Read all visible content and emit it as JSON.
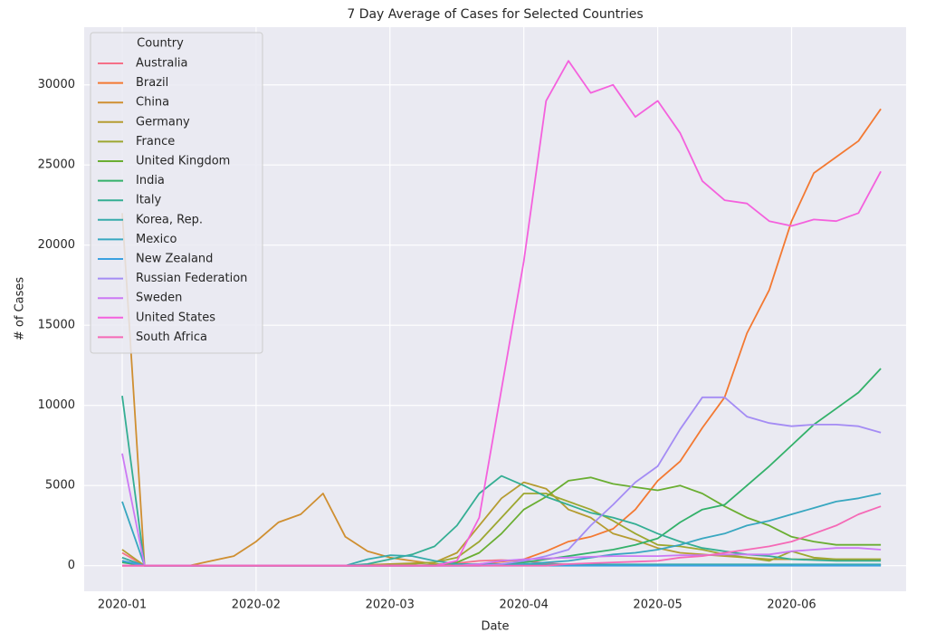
{
  "chart_data": {
    "type": "line",
    "title": "7 Day Average of Cases for Selected Countries",
    "xlabel": "Date",
    "ylabel": "# of Cases",
    "legend_title": "Country",
    "legend": "upper left",
    "grid": true,
    "categories": [
      "2020-01",
      null,
      null,
      null,
      null,
      null,
      "2020-02",
      null,
      null,
      null,
      null,
      null,
      "2020-03",
      null,
      null,
      null,
      null,
      null,
      "2020-04",
      null,
      null,
      null,
      null,
      null,
      "2020-05",
      null,
      null,
      null,
      null,
      null,
      "2020-06",
      null,
      null,
      null,
      null
    ],
    "ylim": [
      -1600,
      33600
    ],
    "yticks": [
      0,
      5000,
      10000,
      15000,
      20000,
      25000,
      30000
    ],
    "series": [
      {
        "name": "Australia",
        "color": "#f67088",
        "values": [
          800,
          0,
          0,
          0,
          0,
          0,
          0,
          0,
          0,
          0,
          0,
          0,
          0,
          0,
          50,
          150,
          300,
          350,
          300,
          150,
          80,
          50,
          30,
          20,
          20,
          20,
          20,
          20,
          20,
          20,
          20,
          20,
          20,
          20,
          20
        ]
      },
      {
        "name": "Brazil",
        "color": "#f37932",
        "values": [
          0,
          0,
          0,
          0,
          0,
          0,
          0,
          0,
          0,
          0,
          0,
          0,
          0,
          0,
          0,
          20,
          100,
          250,
          400,
          900,
          1500,
          1800,
          2300,
          3500,
          5300,
          6500,
          8600,
          10500,
          14500,
          17200,
          21500,
          24500,
          25500,
          26500,
          28500
        ]
      },
      {
        "name": "China",
        "color": "#cf8f31",
        "values": [
          22000,
          0,
          0,
          0,
          300,
          600,
          1500,
          2700,
          3200,
          4500,
          1800,
          900,
          500,
          300,
          100,
          50,
          50,
          50,
          50,
          50,
          50,
          50,
          50,
          50,
          50,
          50,
          50,
          50,
          50,
          50,
          50,
          50,
          50,
          50,
          50
        ]
      },
      {
        "name": "Germany",
        "color": "#b59c31",
        "values": [
          1000,
          0,
          0,
          0,
          0,
          0,
          0,
          0,
          0,
          0,
          0,
          50,
          100,
          150,
          200,
          800,
          2500,
          4200,
          5200,
          4800,
          3500,
          3000,
          2000,
          1600,
          1100,
          800,
          700,
          600,
          500,
          400,
          400,
          400,
          400,
          400,
          400
        ]
      },
      {
        "name": "France",
        "color": "#9da730",
        "values": [
          500,
          0,
          0,
          0,
          0,
          0,
          0,
          0,
          0,
          0,
          0,
          0,
          50,
          100,
          200,
          500,
          1500,
          3000,
          4500,
          4500,
          4000,
          3500,
          2800,
          2000,
          1300,
          1200,
          1000,
          700,
          500,
          300,
          900,
          500,
          400,
          400,
          400
        ]
      },
      {
        "name": "United Kingdom",
        "color": "#6aae32",
        "values": [
          300,
          0,
          0,
          0,
          0,
          0,
          0,
          0,
          0,
          0,
          0,
          0,
          0,
          0,
          50,
          200,
          800,
          2000,
          3500,
          4300,
          5300,
          5500,
          5100,
          4900,
          4700,
          5000,
          4500,
          3700,
          3000,
          2500,
          1800,
          1500,
          1300,
          1300,
          1300
        ]
      },
      {
        "name": "India",
        "color": "#33b16a",
        "values": [
          200,
          0,
          0,
          0,
          0,
          0,
          0,
          0,
          0,
          0,
          0,
          0,
          0,
          0,
          0,
          50,
          100,
          100,
          200,
          400,
          600,
          800,
          1000,
          1300,
          1700,
          2700,
          3500,
          3800,
          5000,
          6200,
          7500,
          8800,
          9800,
          10800,
          12300
        ]
      },
      {
        "name": "Italy",
        "color": "#34ae93",
        "values": [
          10600,
          0,
          0,
          0,
          0,
          0,
          0,
          0,
          0,
          0,
          0,
          100,
          400,
          700,
          1200,
          2500,
          4500,
          5600,
          5000,
          4300,
          3800,
          3300,
          3000,
          2600,
          2000,
          1500,
          1100,
          900,
          700,
          600,
          400,
          350,
          300,
          300,
          300
        ]
      },
      {
        "name": "Korea, Rep.",
        "color": "#36abab",
        "values": [
          500,
          0,
          0,
          0,
          0,
          0,
          0,
          0,
          0,
          0,
          0,
          400,
          650,
          600,
          300,
          100,
          80,
          80,
          80,
          80,
          80,
          80,
          80,
          80,
          80,
          80,
          80,
          80,
          80,
          80,
          80,
          80,
          80,
          80,
          80
        ]
      },
      {
        "name": "Mexico",
        "color": "#38a7c0",
        "values": [
          4000,
          0,
          0,
          0,
          0,
          0,
          0,
          0,
          0,
          0,
          0,
          0,
          0,
          0,
          0,
          0,
          0,
          50,
          100,
          200,
          300,
          500,
          700,
          800,
          1000,
          1300,
          1700,
          2000,
          2500,
          2800,
          3200,
          3600,
          4000,
          4200,
          4500
        ]
      },
      {
        "name": "New Zealand",
        "color": "#3ba0e0",
        "values": [
          300,
          0,
          0,
          0,
          0,
          0,
          0,
          0,
          0,
          0,
          0,
          0,
          0,
          0,
          0,
          0,
          0,
          0,
          0,
          0,
          0,
          0,
          0,
          0,
          0,
          0,
          0,
          0,
          0,
          0,
          0,
          0,
          0,
          0,
          0
        ]
      },
      {
        "name": "Russian Federation",
        "color": "#a48cf4",
        "values": [
          0,
          0,
          0,
          0,
          0,
          0,
          0,
          0,
          0,
          0,
          0,
          0,
          0,
          0,
          0,
          0,
          0,
          100,
          300,
          600,
          1000,
          2500,
          3800,
          5200,
          6200,
          8500,
          10500,
          10500,
          9300,
          8900,
          8700,
          8800,
          8800,
          8700,
          8300
        ]
      },
      {
        "name": "Sweden",
        "color": "#cc79f4",
        "values": [
          7000,
          0,
          0,
          0,
          0,
          0,
          0,
          0,
          0,
          0,
          0,
          0,
          0,
          0,
          0,
          0,
          100,
          300,
          400,
          450,
          500,
          550,
          600,
          600,
          600,
          650,
          650,
          700,
          700,
          700,
          900,
          1000,
          1100,
          1100,
          1000
        ]
      },
      {
        "name": "United States",
        "color": "#f461dd",
        "values": [
          0,
          0,
          0,
          0,
          0,
          0,
          0,
          0,
          0,
          0,
          0,
          0,
          0,
          0,
          0,
          300,
          3000,
          11000,
          19000,
          29000,
          31500,
          29500,
          30000,
          28000,
          29000,
          27000,
          24000,
          22800,
          22600,
          21500,
          21200,
          21600,
          21500,
          22000,
          24600
        ]
      },
      {
        "name": "South Africa",
        "color": "#f569b6",
        "values": [
          0,
          0,
          0,
          0,
          0,
          0,
          0,
          0,
          0,
          0,
          0,
          0,
          0,
          0,
          0,
          0,
          0,
          0,
          0,
          0,
          100,
          150,
          200,
          250,
          300,
          500,
          600,
          800,
          1000,
          1200,
          1500,
          2000,
          2500,
          3200,
          3700
        ]
      }
    ]
  }
}
